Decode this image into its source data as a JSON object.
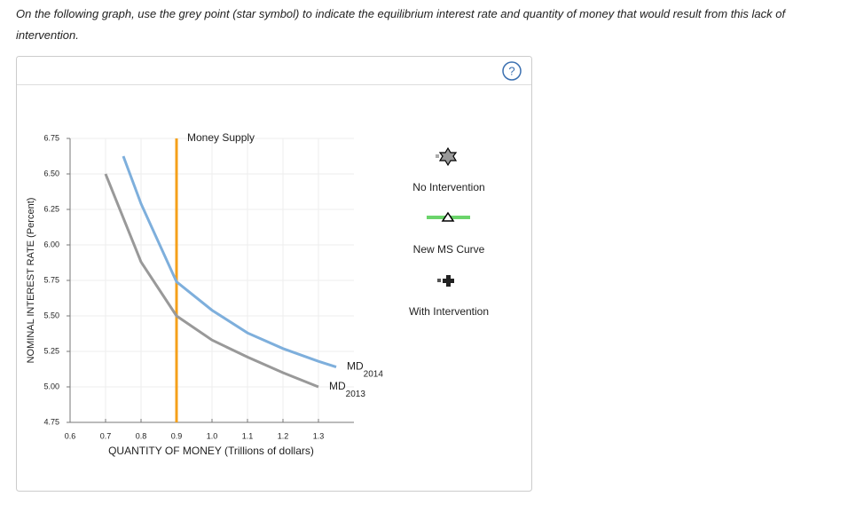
{
  "instruction": "On the following graph, use the grey point (star symbol) to indicate the equilibrium interest rate and quantity of money that would result from this lack of intervention.",
  "help": "?",
  "tools": [
    {
      "label": "No Intervention"
    },
    {
      "label": "New MS Curve"
    },
    {
      "label": "With Intervention"
    }
  ],
  "chart_data": {
    "type": "line",
    "x_label": "QUANTITY OF MONEY (Trillions of dollars)",
    "y_label": "NOMINAL INTEREST RATE (Percent)",
    "xlim": [
      0.6,
      1.4
    ],
    "ylim": [
      4.75,
      6.75
    ],
    "xticks": [
      0.6,
      0.7,
      0.8,
      0.9,
      {
        "value": 1,
        "label": "1.0"
      },
      1.1,
      1.2,
      1.3
    ],
    "yticks": [
      4.75,
      {
        "value": 5,
        "label": "5.00"
      },
      5.25,
      {
        "value": 5.5,
        "label": "5.50"
      },
      5.75,
      {
        "value": 6,
        "label": "6.00"
      },
      6.25,
      {
        "value": 6.5,
        "label": "6.50"
      },
      6.75
    ],
    "grid": true,
    "series": [
      {
        "name": "Money Supply",
        "color": "#f5a01a",
        "x": [
          0.9,
          0.9
        ],
        "values": [
          4.75,
          6.75
        ]
      },
      {
        "name": "MD",
        "subscript": "2013",
        "color": "#999999",
        "x": [
          0.7,
          0.8,
          0.9,
          1,
          1.1,
          1.2,
          1.3
        ],
        "values": [
          6.5,
          5.88,
          5.5,
          5.33,
          5.21,
          5.1,
          5.0
        ]
      },
      {
        "name": "MD",
        "subscript": "2014",
        "color": "#7eafdc",
        "x": [
          0.75,
          0.8,
          0.9,
          1,
          1.1,
          1.2,
          1.3,
          1.35
        ],
        "values": [
          6.625,
          6.29,
          5.74,
          5.54,
          5.38,
          5.27,
          5.18,
          5.14
        ]
      }
    ]
  }
}
